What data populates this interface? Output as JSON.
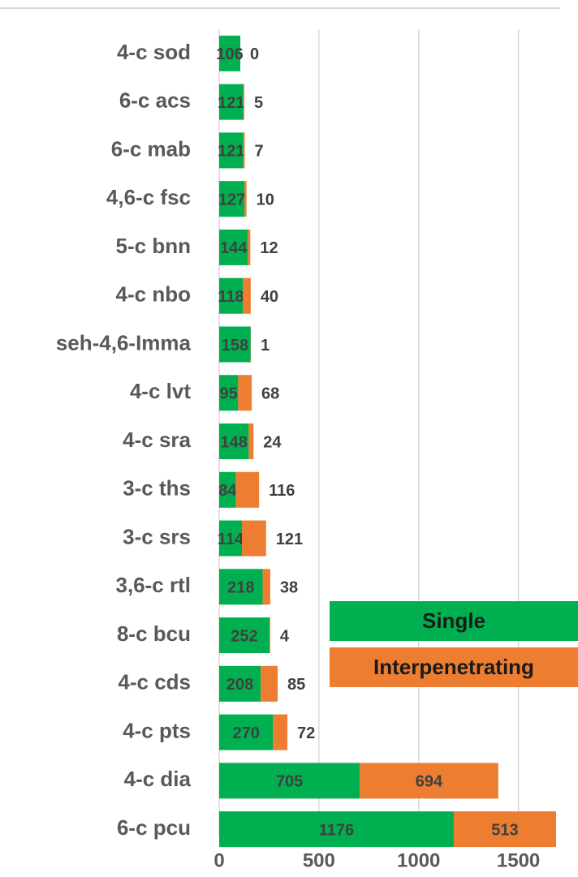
{
  "chart_data": {
    "type": "stacked_barh",
    "categories": [
      "4-c sod",
      "6-c acs",
      "6-c mab",
      "4,6-c fsc",
      "5-c bnn",
      "4-c nbo",
      "seh-4,6-Imma",
      "4-c lvt",
      "4-c sra",
      "3-c ths",
      "3-c srs",
      "3,6-c rtl",
      "8-c bcu",
      "4-c cds",
      "4-c pts",
      "4-c dia",
      "6-c pcu"
    ],
    "series": [
      {
        "name": "Single",
        "color": "#00b050",
        "values": [
          106,
          121,
          121,
          127,
          144,
          118,
          158,
          95,
          148,
          84,
          114,
          218,
          252,
          208,
          270,
          705,
          1176
        ]
      },
      {
        "name": "Interpenetrating",
        "color": "#ed7d31",
        "values": [
          0,
          5,
          7,
          10,
          12,
          40,
          1,
          68,
          24,
          116,
          121,
          38,
          4,
          85,
          72,
          694,
          513
        ]
      }
    ],
    "xlim": [
      0,
      1750
    ],
    "xticks": [
      0,
      500,
      1000,
      1500
    ],
    "grid": true,
    "legend": "lower right"
  }
}
